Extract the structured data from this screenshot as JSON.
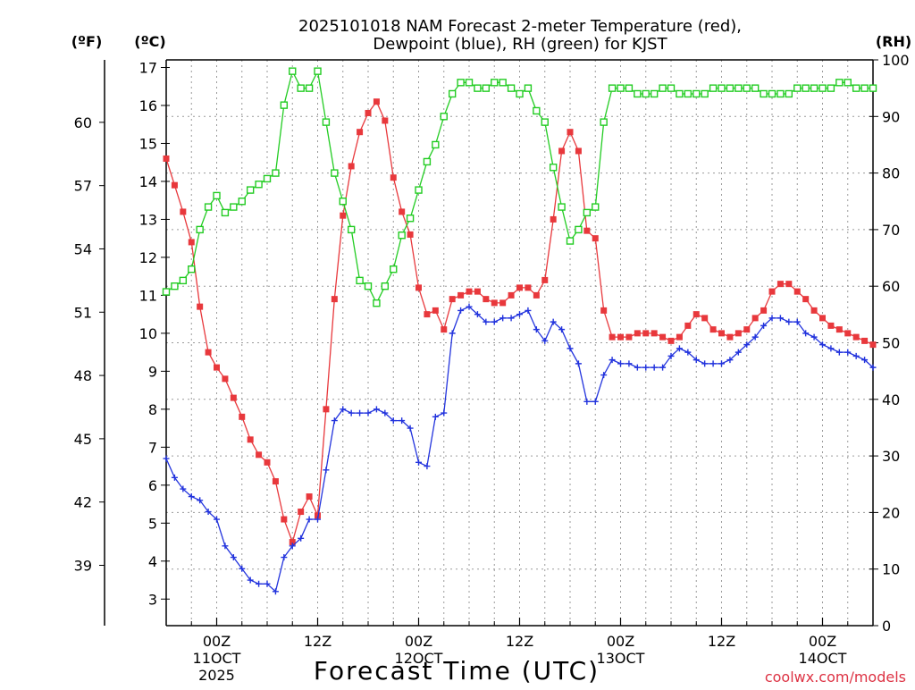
{
  "chart_data": {
    "type": "line",
    "title_line1": "2025101018 NAM Forecast 2-meter Temperature (red),",
    "title_line2": "Dewpoint (blue), RH (green) for KJST",
    "axis_unit_labels": {
      "fahrenheit": "(ºF)",
      "celsius": "(ºC)",
      "rh": "(RH)"
    },
    "xlabel": "Forecast Time (UTC)",
    "watermark": "coolwx.com/models",
    "left_axis_celsius": {
      "ylim": [
        2.3,
        17.2
      ],
      "ticks": [
        3,
        4,
        5,
        6,
        7,
        8,
        9,
        10,
        11,
        12,
        13,
        14,
        15,
        16,
        17
      ]
    },
    "left_axis_fahrenheit": {
      "ticks": [
        39,
        42,
        45,
        48,
        51,
        54,
        57,
        60
      ]
    },
    "right_axis_rh": {
      "ylim": [
        0,
        100
      ],
      "ticks": [
        0,
        10,
        20,
        30,
        40,
        50,
        60,
        70,
        80,
        90,
        100
      ]
    },
    "x_hours": {
      "start": 18,
      "end": 102,
      "step": 1
    },
    "x_ticks": [
      {
        "hour": 24,
        "line1": "00Z",
        "line2": "11OCT",
        "line3": "2025"
      },
      {
        "hour": 36,
        "line1": "12Z",
        "line2": "",
        "line3": ""
      },
      {
        "hour": 48,
        "line1": "00Z",
        "line2": "12OCT",
        "line3": ""
      },
      {
        "hour": 60,
        "line1": "12Z",
        "line2": "",
        "line3": ""
      },
      {
        "hour": 72,
        "line1": "00Z",
        "line2": "13OCT",
        "line3": ""
      },
      {
        "hour": 84,
        "line1": "12Z",
        "line2": "",
        "line3": ""
      },
      {
        "hour": 96,
        "line1": "00Z",
        "line2": "14OCT",
        "line3": ""
      }
    ],
    "grid": true,
    "series": [
      {
        "name": "Temperature",
        "axis": "celsius",
        "color": "#e8383c",
        "marker": "filled-square",
        "values": [
          14.6,
          13.9,
          13.2,
          12.4,
          10.7,
          9.5,
          9.1,
          8.8,
          8.3,
          7.8,
          7.2,
          6.8,
          6.6,
          6.1,
          5.1,
          4.5,
          5.3,
          5.7,
          5.2,
          8.0,
          10.9,
          13.1,
          14.4,
          15.3,
          15.8,
          16.1,
          15.6,
          14.1,
          13.2,
          12.6,
          11.2,
          10.5,
          10.6,
          10.1,
          10.9,
          11.0,
          11.1,
          11.1,
          10.9,
          10.8,
          10.8,
          11.0,
          11.2,
          11.2,
          11.0,
          11.4,
          13.0,
          14.8,
          15.3,
          14.8,
          12.7,
          12.5,
          10.6,
          9.9,
          9.9,
          9.9,
          10.0,
          10.0,
          10.0,
          9.9,
          9.8,
          9.9,
          10.2,
          10.5,
          10.4,
          10.1,
          10.0,
          9.9,
          10.0,
          10.1,
          10.4,
          10.6,
          11.1,
          11.3,
          11.3,
          11.1,
          10.9,
          10.6,
          10.4,
          10.2,
          10.1,
          10.0,
          9.9,
          9.8,
          9.7
        ]
      },
      {
        "name": "Dewpoint",
        "axis": "celsius",
        "color": "#2233dd",
        "marker": "plus",
        "values": [
          6.7,
          6.2,
          5.9,
          5.7,
          5.6,
          5.3,
          5.1,
          4.4,
          4.1,
          3.8,
          3.5,
          3.4,
          3.4,
          3.2,
          4.1,
          4.4,
          4.6,
          5.1,
          5.1,
          6.4,
          7.7,
          8.0,
          7.9,
          7.9,
          7.9,
          8.0,
          7.9,
          7.7,
          7.7,
          7.5,
          6.6,
          6.5,
          7.8,
          7.9,
          10.0,
          10.6,
          10.7,
          10.5,
          10.3,
          10.3,
          10.4,
          10.4,
          10.5,
          10.6,
          10.1,
          9.8,
          10.3,
          10.1,
          9.6,
          9.2,
          8.2,
          8.2,
          8.9,
          9.3,
          9.2,
          9.2,
          9.1,
          9.1,
          9.1,
          9.1,
          9.4,
          9.6,
          9.5,
          9.3,
          9.2,
          9.2,
          9.2,
          9.3,
          9.5,
          9.7,
          9.9,
          10.2,
          10.4,
          10.4,
          10.3,
          10.3,
          10.0,
          9.9,
          9.7,
          9.6,
          9.5,
          9.5,
          9.4,
          9.3,
          9.1
        ]
      },
      {
        "name": "RH",
        "axis": "rh",
        "color": "#22cc22",
        "marker": "open-square",
        "values": [
          59,
          60,
          61,
          63,
          70,
          74,
          76,
          73,
          74,
          75,
          77,
          78,
          79,
          80,
          92,
          98,
          95,
          95,
          98,
          89,
          80,
          75,
          70,
          61,
          60,
          57,
          60,
          63,
          69,
          72,
          77,
          82,
          85,
          90,
          94,
          96,
          96,
          95,
          95,
          96,
          96,
          95,
          94,
          95,
          91,
          89,
          81,
          74,
          68,
          70,
          73,
          74,
          89,
          95,
          95,
          95,
          94,
          94,
          94,
          95,
          95,
          94,
          94,
          94,
          94,
          95,
          95,
          95,
          95,
          95,
          95,
          94,
          94,
          94,
          94,
          95,
          95,
          95,
          95,
          95,
          96,
          96,
          95,
          95,
          95
        ]
      }
    ]
  }
}
